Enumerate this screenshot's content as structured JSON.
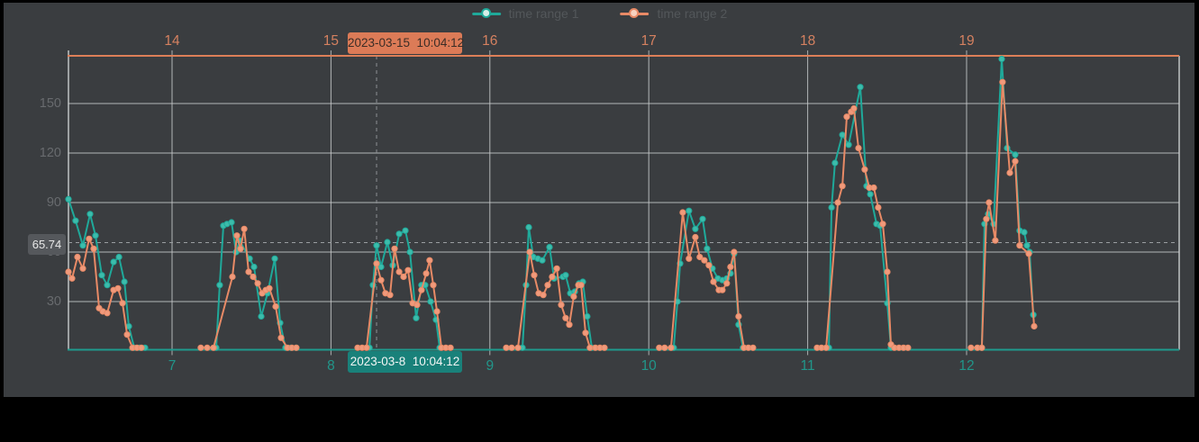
{
  "legend": {
    "items": [
      {
        "label": "time range 1",
        "color": "#1fa99a",
        "dot_center": "#d6efe9"
      },
      {
        "label": "time range 2",
        "color": "#e8留8a66",
        "dot_center": "#f6d2c0"
      }
    ]
  },
  "tooltips": {
    "top": {
      "text": "2023-03-15  10:04:12",
      "bg": "#dc7b57"
    },
    "bottom": {
      "text": "2023-03-8  10:04:12",
      "bg": "#19817a"
    }
  },
  "y_marker": {
    "text": "65.74",
    "value": 65.74
  },
  "chart_data": {
    "type": "line",
    "title": "",
    "x_axis_top": {
      "labels": [
        "14",
        "15",
        "16",
        "17",
        "18",
        "19"
      ],
      "color": "#d58160",
      "axis_color": "#dd7f58"
    },
    "x_axis_bottom": {
      "labels": [
        "7",
        "8",
        "9",
        "10",
        "11",
        "12"
      ],
      "color": "#21968a",
      "axis_color": "#1f9c8e"
    },
    "y_axis": {
      "values": [
        30,
        60,
        90,
        120,
        150
      ],
      "labels": [
        "30",
        "60",
        "90",
        "120",
        "150"
      ],
      "color": "#686b6e"
    },
    "ylim": [
      0,
      180
    ],
    "xlim_days": [
      6.348,
      13.338
    ],
    "grid": true,
    "pointer_day": 8.287,
    "legend_position": "top-center",
    "series": [
      {
        "name": "time range 1",
        "color": "#1fa99a",
        "dot_fill": "#3dbcab",
        "segments": [
          [
            [
              6.348,
              92
            ],
            [
              6.393,
              79
            ],
            [
              6.439,
              64
            ],
            [
              6.484,
              83
            ],
            [
              6.518,
              70
            ],
            [
              6.558,
              46
            ],
            [
              6.592,
              40
            ],
            [
              6.632,
              54
            ],
            [
              6.666,
              57
            ],
            [
              6.7,
              42
            ],
            [
              6.728,
              15
            ],
            [
              6.762,
              2
            ],
            [
              6.796,
              2
            ],
            [
              6.83,
              2
            ]
          ],
          [
            [
              7.278,
              2
            ],
            [
              7.3,
              40
            ],
            [
              7.323,
              76
            ],
            [
              7.346,
              77
            ],
            [
              7.374,
              78
            ],
            [
              7.403,
              60
            ],
            [
              7.425,
              67
            ],
            [
              7.488,
              56
            ],
            [
              7.516,
              51
            ],
            [
              7.561,
              21
            ],
            [
              7.601,
              35
            ],
            [
              7.646,
              56
            ],
            [
              7.68,
              17
            ],
            [
              7.714,
              2
            ],
            [
              7.748,
              2
            ],
            [
              7.782,
              2
            ]
          ],
          [
            [
              8.242,
              2
            ],
            [
              8.264,
              40
            ],
            [
              8.287,
              64
            ],
            [
              8.315,
              51
            ],
            [
              8.355,
              66
            ],
            [
              8.389,
              52
            ],
            [
              8.429,
              71
            ],
            [
              8.468,
              73
            ],
            [
              8.497,
              60
            ],
            [
              8.536,
              20
            ],
            [
              8.57,
              40
            ],
            [
              8.593,
              40
            ],
            [
              8.627,
              30
            ],
            [
              8.661,
              19
            ],
            [
              8.684,
              2
            ]
          ],
          [
            [
              9.205,
              2
            ],
            [
              9.228,
              40
            ],
            [
              9.245,
              75
            ],
            [
              9.273,
              57
            ],
            [
              9.302,
              56
            ],
            [
              9.33,
              55
            ],
            [
              9.375,
              63
            ],
            [
              9.404,
              44
            ],
            [
              9.46,
              45
            ],
            [
              9.477,
              46
            ],
            [
              9.506,
              35
            ],
            [
              9.534,
              36
            ],
            [
              9.562,
              41
            ],
            [
              9.585,
              42
            ],
            [
              9.613,
              21
            ],
            [
              9.642,
              2
            ]
          ],
          [
            [
              10.157,
              2
            ],
            [
              10.18,
              30
            ],
            [
              10.197,
              53
            ],
            [
              10.253,
              85
            ],
            [
              10.293,
              74
            ],
            [
              10.339,
              80
            ],
            [
              10.367,
              62
            ],
            [
              10.401,
              50
            ],
            [
              10.435,
              44
            ],
            [
              10.463,
              43
            ],
            [
              10.491,
              44
            ],
            [
              10.514,
              47
            ],
            [
              10.537,
              59
            ],
            [
              10.565,
              16
            ],
            [
              10.593,
              2
            ]
          ],
          [
            [
              11.133,
              2
            ],
            [
              11.15,
              87
            ],
            [
              11.172,
              114
            ],
            [
              11.218,
              131
            ],
            [
              11.258,
              125
            ],
            [
              11.331,
              160
            ],
            [
              11.371,
              100
            ],
            [
              11.394,
              95
            ],
            [
              11.433,
              77
            ],
            [
              11.456,
              76
            ],
            [
              11.501,
              29
            ],
            [
              11.524,
              2
            ]
          ],
          [
            [
              12.096,
              2
            ],
            [
              12.113,
              77
            ],
            [
              12.136,
              83
            ],
            [
              12.17,
              77
            ],
            [
              12.221,
              177
            ],
            [
              12.255,
              123
            ],
            [
              12.306,
              119
            ],
            [
              12.334,
              73
            ],
            [
              12.363,
              72
            ],
            [
              12.38,
              64
            ],
            [
              12.397,
              60
            ],
            [
              12.42,
              22
            ]
          ]
        ]
      },
      {
        "name": "time range 2",
        "color": "#e88a66",
        "dot_fill": "#f09a7c",
        "segments": [
          [
            [
              6.348,
              48
            ],
            [
              6.371,
              44
            ],
            [
              6.405,
              57
            ],
            [
              6.439,
              50
            ],
            [
              6.478,
              68
            ],
            [
              6.507,
              62
            ],
            [
              6.541,
              26
            ],
            [
              6.564,
              24
            ],
            [
              6.592,
              23
            ],
            [
              6.632,
              37
            ],
            [
              6.66,
              38
            ],
            [
              6.688,
              29
            ],
            [
              6.717,
              10
            ],
            [
              6.751,
              2
            ],
            [
              6.779,
              2
            ],
            [
              6.807,
              2
            ]
          ],
          [
            [
              7.181,
              2
            ],
            [
              7.221,
              2
            ],
            [
              7.261,
              2
            ],
            [
              7.38,
              45
            ],
            [
              7.408,
              70
            ],
            [
              7.431,
              62
            ],
            [
              7.454,
              74
            ],
            [
              7.482,
              48
            ],
            [
              7.51,
              45
            ],
            [
              7.539,
              41
            ],
            [
              7.567,
              35
            ],
            [
              7.59,
              37
            ],
            [
              7.612,
              38
            ],
            [
              7.652,
              27
            ],
            [
              7.686,
              8
            ],
            [
              7.726,
              2
            ],
            [
              7.754,
              2
            ],
            [
              7.782,
              2
            ]
          ],
          [
            [
              8.168,
              2
            ],
            [
              8.196,
              2
            ],
            [
              8.224,
              2
            ],
            [
              8.287,
              53
            ],
            [
              8.315,
              43
            ],
            [
              8.343,
              35
            ],
            [
              8.372,
              34
            ],
            [
              8.4,
              62
            ],
            [
              8.429,
              48
            ],
            [
              8.457,
              45
            ],
            [
              8.485,
              49
            ],
            [
              8.514,
              29
            ],
            [
              8.542,
              28
            ],
            [
              8.57,
              37
            ],
            [
              8.599,
              47
            ],
            [
              8.621,
              55
            ],
            [
              8.644,
              40
            ],
            [
              8.667,
              24
            ],
            [
              8.695,
              2
            ],
            [
              8.723,
              2
            ],
            [
              8.752,
              2
            ]
          ],
          [
            [
              9.103,
              2
            ],
            [
              9.137,
              2
            ],
            [
              9.177,
              2
            ],
            [
              9.251,
              60
            ],
            [
              9.279,
              46
            ],
            [
              9.307,
              35
            ],
            [
              9.336,
              34
            ],
            [
              9.364,
              40
            ],
            [
              9.392,
              45
            ],
            [
              9.421,
              50
            ],
            [
              9.449,
              28
            ],
            [
              9.477,
              20
            ],
            [
              9.5,
              16
            ],
            [
              9.528,
              33
            ],
            [
              9.557,
              40
            ],
            [
              9.574,
              40
            ],
            [
              9.602,
              11
            ],
            [
              9.63,
              2
            ],
            [
              9.664,
              2
            ],
            [
              9.693,
              2
            ],
            [
              9.721,
              2
            ]
          ],
          [
            [
              10.066,
              2
            ],
            [
              10.1,
              2
            ],
            [
              10.14,
              2
            ],
            [
              10.214,
              84
            ],
            [
              10.253,
              56
            ],
            [
              10.293,
              69
            ],
            [
              10.321,
              57
            ],
            [
              10.35,
              55
            ],
            [
              10.378,
              52
            ],
            [
              10.407,
              42
            ],
            [
              10.441,
              37
            ],
            [
              10.463,
              37
            ],
            [
              10.491,
              41
            ],
            [
              10.514,
              51
            ],
            [
              10.537,
              60
            ],
            [
              10.565,
              21
            ],
            [
              10.599,
              2
            ],
            [
              10.627,
              2
            ],
            [
              10.656,
              2
            ]
          ],
          [
            [
              11.059,
              2
            ],
            [
              11.087,
              2
            ],
            [
              11.116,
              2
            ],
            [
              11.19,
              90
            ],
            [
              11.218,
              100
            ],
            [
              11.246,
              142
            ],
            [
              11.274,
              145
            ],
            [
              11.291,
              147
            ],
            [
              11.32,
              123
            ],
            [
              11.359,
              110
            ],
            [
              11.388,
              99
            ],
            [
              11.416,
              99
            ],
            [
              11.444,
              87
            ],
            [
              11.473,
              77
            ],
            [
              11.501,
              48
            ],
            [
              11.524,
              4
            ],
            [
              11.546,
              2
            ],
            [
              11.575,
              2
            ],
            [
              11.603,
              2
            ],
            [
              11.631,
              2
            ]
          ],
          [
            [
              12.028,
              2
            ],
            [
              12.068,
              2
            ],
            [
              12.096,
              2
            ],
            [
              12.124,
              80
            ],
            [
              12.141,
              90
            ],
            [
              12.181,
              67
            ],
            [
              12.226,
              163
            ],
            [
              12.272,
              108
            ],
            [
              12.306,
              115
            ],
            [
              12.334,
              64
            ],
            [
              12.391,
              59
            ],
            [
              12.425,
              15
            ]
          ]
        ]
      }
    ]
  }
}
